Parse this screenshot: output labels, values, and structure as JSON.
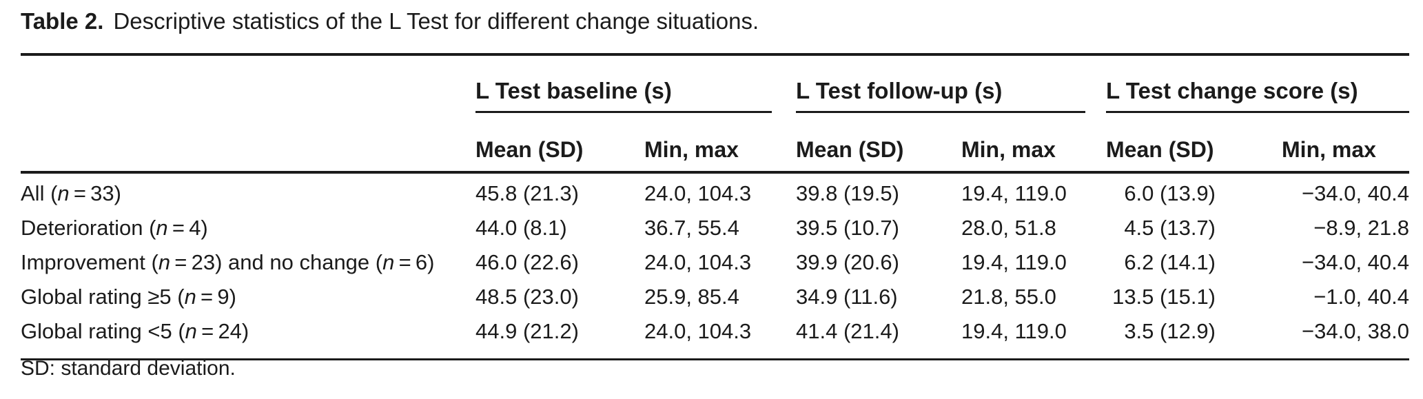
{
  "title": {
    "label": "Table 2.",
    "text": "Descriptive statistics of the L Test for different change situations."
  },
  "table": {
    "groups": [
      {
        "label": "L Test baseline (s)"
      },
      {
        "label": "L Test follow-up (s)"
      },
      {
        "label": "L Test change score (s)"
      }
    ],
    "subheaders": {
      "mean": "Mean (SD)",
      "minmax": "Min, max"
    },
    "rows": [
      {
        "label": "All (n = 33)",
        "cells": [
          "45.8 (21.3)",
          "24.0, 104.3",
          "39.8 (19.5)",
          "19.4, 119.0",
          "6.0 (13.9)",
          "−34.0, 40.4"
        ]
      },
      {
        "label": "Deterioration (n = 4)",
        "cells": [
          "44.0 (8.1)",
          "36.7, 55.4",
          "39.5 (10.7)",
          "28.0, 51.8",
          "4.5 (13.7)",
          "−8.9, 21.8"
        ]
      },
      {
        "label": "Improvement (n = 23) and no change (n = 6)",
        "cells": [
          "46.0 (22.6)",
          "24.0, 104.3",
          "39.9 (20.6)",
          "19.4, 119.0",
          "6.2 (14.1)",
          "−34.0, 40.4"
        ]
      },
      {
        "label": "Global rating ≥5 (n = 9)",
        "cells": [
          "48.5 (23.0)",
          "25.9, 85.4",
          "34.9 (11.6)",
          "21.8, 55.0",
          "13.5 (15.1)",
          "−1.0, 40.4"
        ]
      },
      {
        "label": "Global rating <5 (n = 24)",
        "cells": [
          "44.9 (21.2)",
          "24.0, 104.3",
          "41.4 (21.4)",
          "19.4, 119.0",
          "3.5 (12.9)",
          "−34.0, 38.0"
        ]
      }
    ]
  },
  "footnote": "SD: standard deviation."
}
